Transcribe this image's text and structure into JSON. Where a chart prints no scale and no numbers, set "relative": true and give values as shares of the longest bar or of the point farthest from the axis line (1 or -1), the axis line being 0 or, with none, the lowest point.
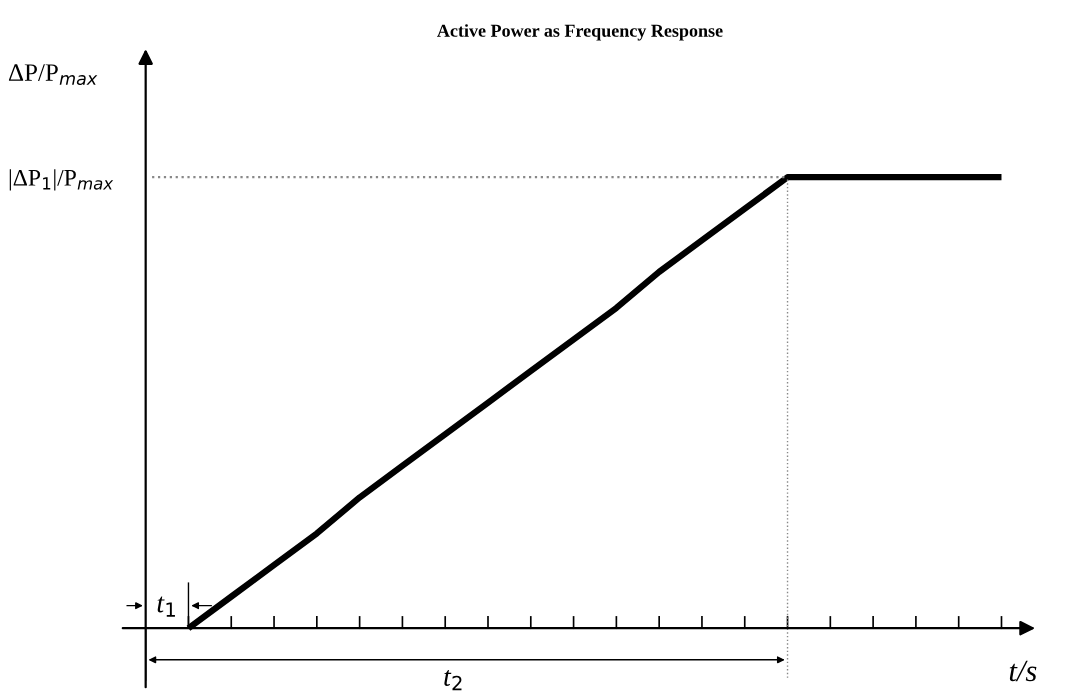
{
  "chart_data": {
    "type": "line",
    "title": "Active Power as Frequency Response",
    "xlabel": "t/s",
    "ylabel": "ΔP/P$_{max}$",
    "relative": true,
    "categories": [
      null,
      null,
      null,
      null,
      null,
      null,
      null,
      null,
      null,
      null,
      null,
      null,
      null,
      null,
      null,
      null,
      null,
      null,
      null,
      null,
      null
    ],
    "series": [
      {
        "color": "#000000",
        "values": [
          null,
          0,
          0.07,
          0.14,
          0.21,
          0.29,
          0.36,
          0.43,
          0.5,
          0.57,
          0.64,
          0.71,
          0.79,
          0.86,
          0.93,
          1,
          1,
          1,
          1,
          1,
          1
        ]
      }
    ],
    "ref_lines": [
      {
        "axis": "y",
        "value": 1,
        "label": "|ΔP$_{1}$|/P$_{max}$",
        "line_style": "dotted",
        "color": "#888888"
      }
    ],
    "annotations": [
      "t$_{1}$",
      "t$_{2}$"
    ],
    "marker": "none",
    "line_style": "solid"
  }
}
